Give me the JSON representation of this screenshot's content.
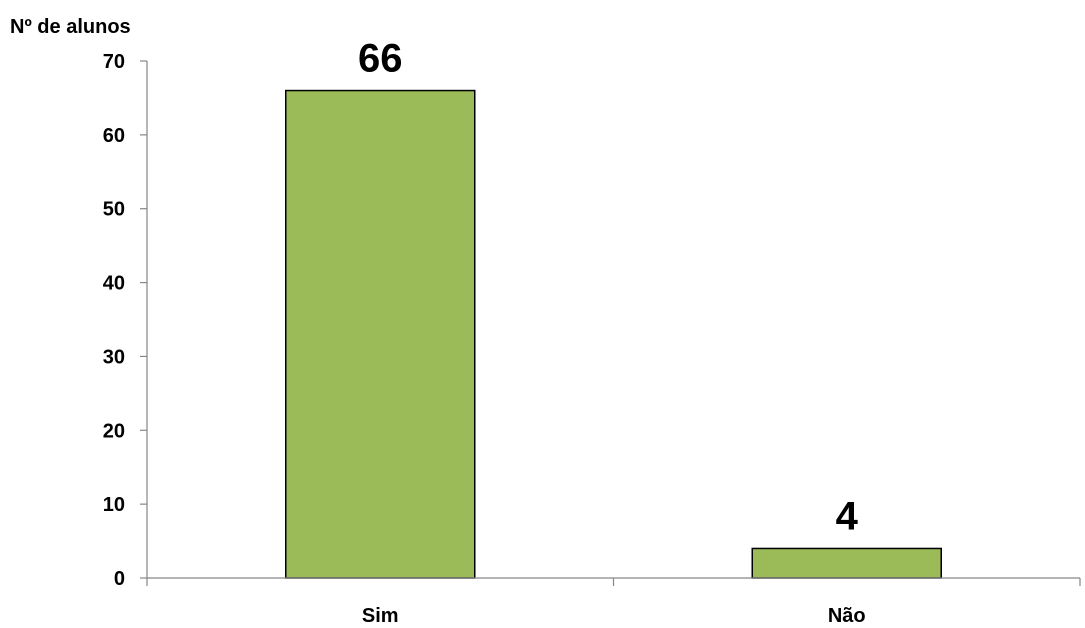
{
  "chart_data": {
    "type": "bar",
    "title": "",
    "xlabel": "",
    "ylabel": "Nº de alunos",
    "categories": [
      "Sim",
      "Não"
    ],
    "values": [
      66,
      4
    ],
    "data_labels": [
      "66",
      "4"
    ],
    "ylim": [
      0,
      70
    ],
    "yticks": [
      0,
      10,
      20,
      30,
      40,
      50,
      60,
      70
    ],
    "grid": false,
    "legend": "none",
    "bar_color": "#9BBB59",
    "bar_edge_color": "#000000",
    "axis_color": "#868686"
  }
}
